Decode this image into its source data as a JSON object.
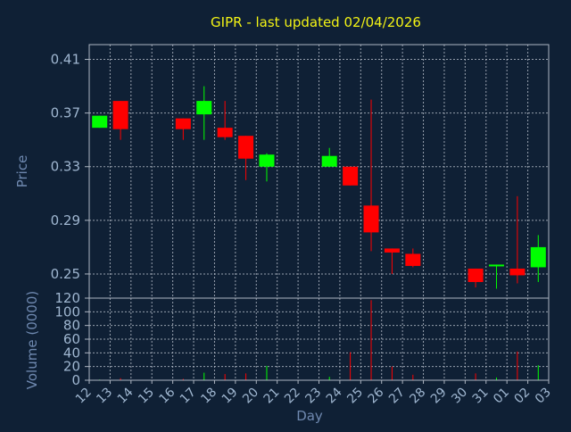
{
  "chart_data": {
    "type": "candlestick",
    "title": "GIPR - last updated 02/04/2026",
    "xlabel": "Day",
    "price_panel": {
      "ylabel": "Price",
      "ylim": [
        0.232,
        0.421
      ],
      "yticks": [
        "0.25",
        "0.29",
        "0.33",
        "0.37",
        "0.41"
      ],
      "ytick_values": [
        0.25,
        0.29,
        0.33,
        0.37,
        0.41
      ]
    },
    "volume_panel": {
      "ylabel": "Volume (0000)",
      "ylim": [
        0,
        120
      ],
      "yticks": [
        "0",
        "20",
        "40",
        "60",
        "80",
        "100",
        "120"
      ],
      "ytick_values": [
        0,
        20,
        40,
        60,
        80,
        100,
        120
      ]
    },
    "x_tick_labels": [
      "12",
      "13",
      "14",
      "15",
      "16",
      "17",
      "18",
      "19",
      "20",
      "21",
      "22",
      "23",
      "24",
      "25",
      "26",
      "27",
      "28",
      "29",
      "30",
      "31",
      "01",
      "02",
      "03"
    ],
    "colors": {
      "up": "#00ff00",
      "down": "#ff0000",
      "background": "#0f2035",
      "grid": "#aeb6c2",
      "title": "#f3f315",
      "tick_label": "#9fb6d0",
      "axis_title": "#6f89b0"
    },
    "candles": [
      {
        "x": "12",
        "open": 0.359,
        "high": 0.368,
        "low": 0.359,
        "close": 0.368,
        "volume": 1
      },
      {
        "x": "13",
        "open": 0.379,
        "high": 0.379,
        "low": 0.35,
        "close": 0.358,
        "volume": 3
      },
      {
        "x": "16",
        "open": 0.366,
        "high": 0.366,
        "low": 0.35,
        "close": 0.358,
        "volume": 2
      },
      {
        "x": "17",
        "open": 0.369,
        "high": 0.39,
        "low": 0.35,
        "close": 0.379,
        "volume": 11
      },
      {
        "x": "18",
        "open": 0.359,
        "high": 0.379,
        "low": 0.35,
        "close": 0.352,
        "volume": 9
      },
      {
        "x": "19",
        "open": 0.353,
        "high": 0.353,
        "low": 0.32,
        "close": 0.336,
        "volume": 10
      },
      {
        "x": "20",
        "open": 0.33,
        "high": 0.34,
        "low": 0.319,
        "close": 0.339,
        "volume": 21
      },
      {
        "x": "23",
        "open": 0.33,
        "high": 0.344,
        "low": 0.33,
        "close": 0.338,
        "volume": 5
      },
      {
        "x": "24",
        "open": 0.33,
        "high": 0.33,
        "low": 0.316,
        "close": 0.316,
        "volume": 41
      },
      {
        "x": "25",
        "open": 0.301,
        "high": 0.38,
        "low": 0.267,
        "close": 0.281,
        "volume": 117
      },
      {
        "x": "26",
        "open": 0.269,
        "high": 0.269,
        "low": 0.25,
        "close": 0.266,
        "volume": 20
      },
      {
        "x": "27",
        "open": 0.265,
        "high": 0.269,
        "low": 0.255,
        "close": 0.256,
        "volume": 8
      },
      {
        "x": "30",
        "open": 0.254,
        "high": 0.254,
        "low": 0.24,
        "close": 0.244,
        "volume": 10
      },
      {
        "x": "31",
        "open": 0.256,
        "high": 0.257,
        "low": 0.239,
        "close": 0.257,
        "volume": 4
      },
      {
        "x": "01",
        "open": 0.254,
        "high": 0.308,
        "low": 0.243,
        "close": 0.249,
        "volume": 42
      },
      {
        "x": "02",
        "open": 0.255,
        "high": 0.279,
        "low": 0.244,
        "close": 0.27,
        "volume": 22
      }
    ]
  }
}
